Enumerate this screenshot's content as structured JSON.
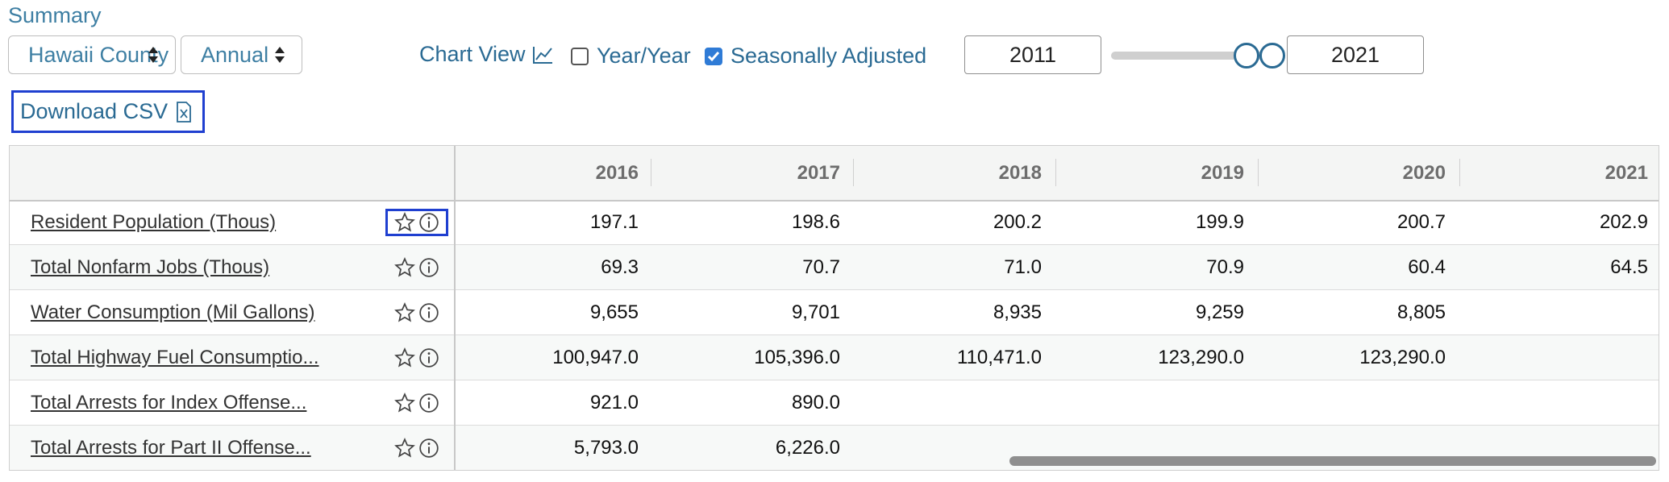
{
  "summary": {
    "title": "Summary"
  },
  "controls": {
    "county_select": "Hawaii County",
    "frequency_select": "Annual",
    "chart_view": "Chart View",
    "yoy": {
      "label": "Year/Year",
      "checked": false
    },
    "seasonal": {
      "label": "Seasonally Adjusted",
      "checked": true
    },
    "start_year": "2011",
    "end_year": "2021"
  },
  "download": {
    "label": "Download CSV"
  },
  "table": {
    "columns": [
      "2016",
      "2017",
      "2018",
      "2019",
      "2020",
      "2021"
    ],
    "rows": [
      {
        "label": "Resident Population (Thous)",
        "values": [
          "197.1",
          "198.6",
          "200.2",
          "199.9",
          "200.7",
          "202.9"
        ]
      },
      {
        "label": "Total Nonfarm Jobs (Thous)",
        "values": [
          "69.3",
          "70.7",
          "71.0",
          "70.9",
          "60.4",
          "64.5"
        ]
      },
      {
        "label": "Water Consumption (Mil Gallons)",
        "values": [
          "9,655",
          "9,701",
          "8,935",
          "9,259",
          "8,805",
          ""
        ]
      },
      {
        "label": "Total Highway Fuel Consumptio...",
        "values": [
          "100,947.0",
          "105,396.0",
          "110,471.0",
          "123,290.0",
          "123,290.0",
          ""
        ]
      },
      {
        "label": "Total Arrests for Index Offense...",
        "values": [
          "921.0",
          "890.0",
          "",
          "",
          "",
          ""
        ]
      },
      {
        "label": "Total Arrests for Part II Offense...",
        "values": [
          "5,793.0",
          "6,226.0",
          "",
          "",
          "",
          ""
        ]
      }
    ]
  },
  "icons": {
    "star": "star-icon",
    "info": "info-icon",
    "chart": "line-chart-icon",
    "csv": "csv-file-icon",
    "caret": "select-caret-icon"
  }
}
